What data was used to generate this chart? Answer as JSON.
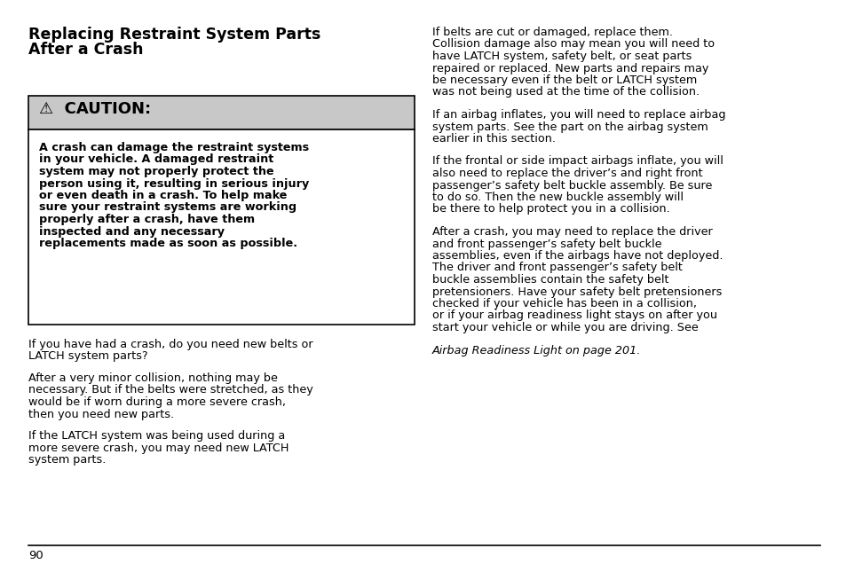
{
  "bg_color": "#ffffff",
  "text_color": "#000000",
  "title_line1": "Replacing Restraint System Parts",
  "title_line2": "After a Crash",
  "caution_header": "⚠  CAUTION:",
  "caution_bg": "#c8c8c8",
  "caution_text_lines": [
    "A crash can damage the restraint systems",
    "in your vehicle. A damaged restraint",
    "system may not properly protect the",
    "person using it, resulting in serious injury",
    "or even death in a crash. To help make",
    "sure your restraint systems are working",
    "properly after a crash, have them",
    "inspected and any necessary",
    "replacements made as soon as possible."
  ],
  "left_paragraphs": [
    [
      "If you have had a crash, do you need new belts or",
      "LATCH system parts?"
    ],
    [
      "After a very minor collision, nothing may be",
      "necessary. But if the belts were stretched, as they",
      "would be if worn during a more severe crash,",
      "then you need new parts."
    ],
    [
      "If the LATCH system was being used during a",
      "more severe crash, you may need new LATCH",
      "system parts."
    ]
  ],
  "right_paragraphs": [
    [
      "If belts are cut or damaged, replace them.",
      "Collision damage also may mean you will need to",
      "have LATCH system, safety belt, or seat parts",
      "repaired or replaced. New parts and repairs may",
      "be necessary even if the belt or LATCH system",
      "was not being used at the time of the collision."
    ],
    [
      "If an airbag inflates, you will need to replace airbag",
      "system parts. See the part on the airbag system",
      "earlier in this section."
    ],
    [
      "If the frontal or side impact airbags inflate, you will",
      "also need to replace the driver’s and right front",
      "passenger’s safety belt buckle assembly. Be sure",
      "to do so. Then the new buckle assembly will",
      "be there to help protect you in a collision."
    ],
    [
      "After a crash, you may need to replace the driver",
      "and front passenger’s safety belt buckle",
      "assemblies, even if the airbags have not deployed.",
      "The driver and front passenger’s safety belt",
      "buckle assemblies contain the safety belt",
      "pretensioners. Have your safety belt pretensioners",
      "checked if your vehicle has been in a collision,",
      "or if your airbag readiness light stays on after you",
      "start your vehicle or while you are driving. See"
    ]
  ],
  "right_last_italic": "Airbag Readiness Light on page 201.",
  "page_number": "90",
  "font_size_title": 12.5,
  "font_size_body": 9.2,
  "font_size_caution_header": 13.0,
  "font_size_caution_body": 9.2,
  "font_size_page": 9.5
}
